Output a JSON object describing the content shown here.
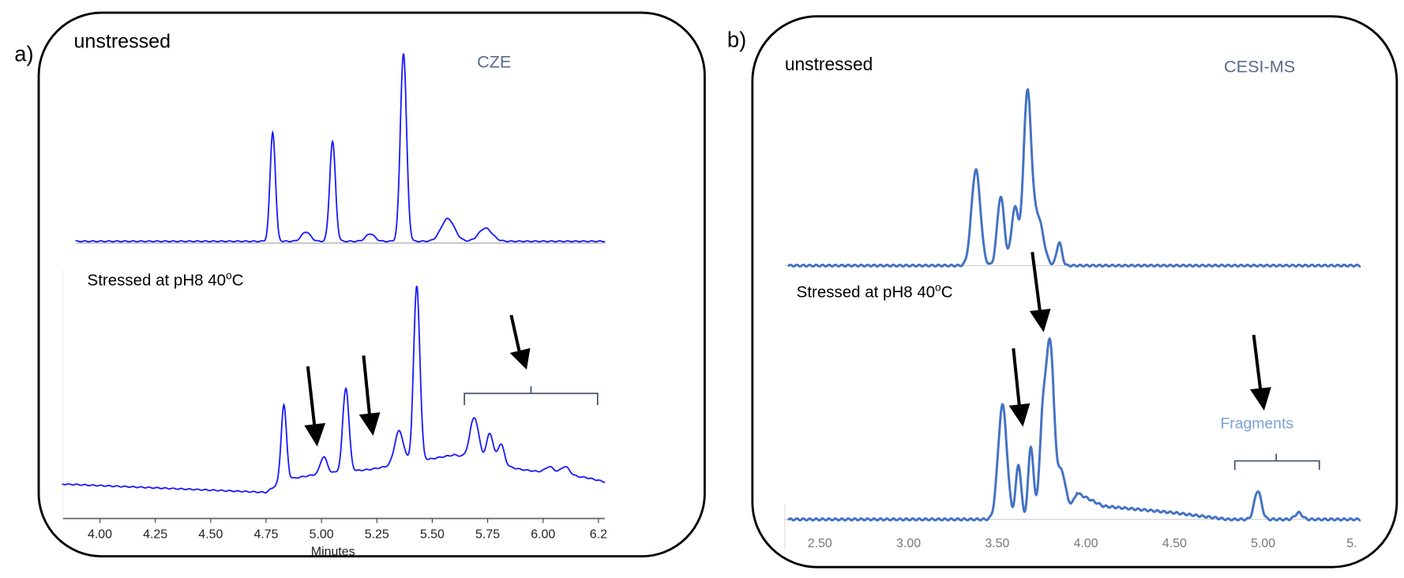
{
  "panels": [
    {
      "letter": "a)",
      "method": "CZE",
      "top_label": "unstressed",
      "bottom_label_main": "Stressed at pH8 40",
      "bottom_label_sup": "o",
      "bottom_label_end": "C",
      "xlabel": "Minutes",
      "ticks": [
        "4.00",
        "4.25",
        "4.50",
        "4.75",
        "5.00",
        "5.25",
        "5.50",
        "5.75",
        "6.00",
        "6.2"
      ]
    },
    {
      "letter": "b)",
      "method": "CESI-MS",
      "top_label": "unstressed",
      "bottom_label_main": "Stressed at pH8 40",
      "bottom_label_sup": "o",
      "bottom_label_end": "C",
      "annotation": "Fragments",
      "ticks": [
        "2.50",
        "3.00",
        "3.50",
        "4.00",
        "4.50",
        "5.00",
        "5."
      ]
    }
  ],
  "colors": {
    "cze_trace": "#1a1aff",
    "cesi_trace": "#4472c4",
    "fragments_text": "#7ba1d8",
    "method_text": "#5a6a8a"
  },
  "chart_data": [
    {
      "type": "line",
      "title": "CZE",
      "xlabel": "Minutes",
      "ylabel": "",
      "xlim": [
        3.83,
        6.28
      ],
      "grid": false,
      "series": [
        {
          "name": "unstressed",
          "model": "sum of peaks [time, relative height, width]",
          "baseline": [
            [
              3.89,
              0
            ],
            [
              6.28,
              0
            ]
          ],
          "peaks": [
            [
              4.78,
              58,
              0.012
            ],
            [
              4.93,
              5,
              0.02
            ],
            [
              5.05,
              53,
              0.013
            ],
            [
              5.22,
              4,
              0.02
            ],
            [
              5.37,
              100,
              0.014
            ],
            [
              5.57,
              12,
              0.03
            ],
            [
              5.74,
              7,
              0.03
            ]
          ]
        },
        {
          "name": "Stressed at pH8 40oC",
          "baseline": [
            [
              3.83,
              4
            ],
            [
              4.75,
              0
            ],
            [
              4.83,
              6
            ],
            [
              5.0,
              9
            ],
            [
              5.22,
              11
            ],
            [
              5.6,
              18
            ],
            [
              5.9,
              11
            ],
            [
              6.2,
              7
            ],
            [
              6.28,
              5
            ]
          ],
          "peaks": [
            [
              4.83,
              36,
              0.012
            ],
            [
              5.01,
              8,
              0.015
            ],
            [
              5.11,
              40,
              0.014
            ],
            [
              5.35,
              16,
              0.02
            ],
            [
              5.43,
              84,
              0.014
            ],
            [
              5.69,
              20,
              0.02
            ],
            [
              5.76,
              14,
              0.015
            ],
            [
              5.81,
              10,
              0.015
            ],
            [
              6.03,
              3,
              0.02
            ],
            [
              6.1,
              4,
              0.02
            ]
          ]
        }
      ]
    },
    {
      "type": "line",
      "title": "CESI-MS",
      "xlabel": "",
      "ylabel": "",
      "xlim": [
        2.32,
        5.55
      ],
      "grid": false,
      "series": [
        {
          "name": "unstressed",
          "baseline": [
            [
              2.32,
              0
            ],
            [
              5.55,
              0
            ]
          ],
          "peaks": [
            [
              3.38,
              50,
              0.025
            ],
            [
              3.52,
              36,
              0.02
            ],
            [
              3.6,
              30,
              0.02
            ],
            [
              3.67,
              88,
              0.022
            ],
            [
              3.73,
              25,
              0.03
            ],
            [
              3.85,
              12,
              0.015
            ]
          ]
        },
        {
          "name": "Stressed at pH8 40oC",
          "baseline": [
            [
              2.32,
              0
            ],
            [
              3.9,
              0
            ],
            [
              3.95,
              12
            ],
            [
              4.1,
              6
            ],
            [
              4.5,
              3
            ],
            [
              4.8,
              0
            ],
            [
              5.55,
              0
            ]
          ],
          "peaks": [
            [
              3.53,
              52,
              0.025
            ],
            [
              3.62,
              25,
              0.015
            ],
            [
              3.69,
              33,
              0.015
            ],
            [
              3.76,
              48,
              0.02
            ],
            [
              3.8,
              72,
              0.02
            ],
            [
              3.86,
              22,
              0.03
            ],
            [
              4.97,
              13,
              0.02
            ],
            [
              5.2,
              3,
              0.02
            ]
          ]
        }
      ]
    }
  ]
}
